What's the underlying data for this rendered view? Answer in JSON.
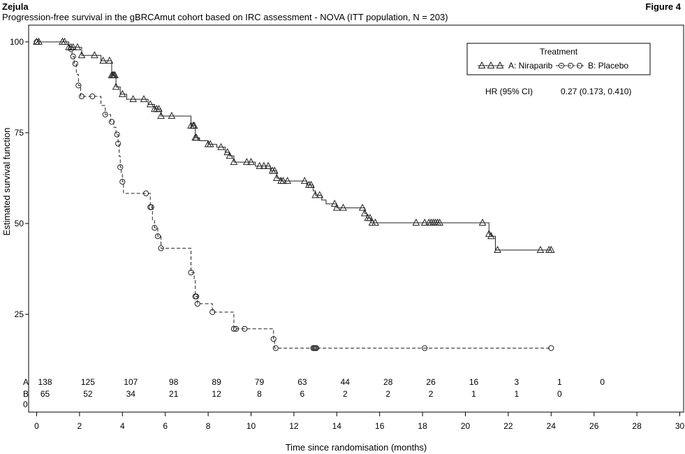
{
  "header": {
    "drug": "Zejula",
    "figure": "Figure 4",
    "subtitle": "Progression-free survival in the gBRCAmut cohort based on IRC assessment - NOVA (ITT population, N = 203)"
  },
  "chart_data": {
    "type": "line",
    "xlabel": "Time since randomisation (months)",
    "ylabel": "Estimated survival function",
    "xlim": [
      0,
      30
    ],
    "ylim": [
      0,
      100
    ],
    "xticks": [
      "0",
      "2",
      "4",
      "6",
      "8",
      "10",
      "12",
      "14",
      "16",
      "18",
      "20",
      "22",
      "24",
      "26",
      "28",
      "30"
    ],
    "yticks": [
      "25",
      "50",
      "75",
      "100"
    ],
    "legend": {
      "title": "Treatment",
      "entries": [
        "A: Niraparib",
        "B: Placebo"
      ],
      "placement": "top-right"
    },
    "annotation": {
      "label": "HR (95% CI)",
      "value": "0.27 (0.173, 0.410)"
    },
    "series": [
      {
        "name": "A: Niraparib",
        "style": "solid",
        "marker": "triangle",
        "steps": [
          [
            0,
            100
          ],
          [
            1.5,
            98.5
          ],
          [
            2.1,
            96.3
          ],
          [
            3,
            94.8
          ],
          [
            3.5,
            90.8
          ],
          [
            3.7,
            87.6
          ],
          [
            3.9,
            85.6
          ],
          [
            4.2,
            84.2
          ],
          [
            5.2,
            82.8
          ],
          [
            5.5,
            81.5
          ],
          [
            5.8,
            79.6
          ],
          [
            7.2,
            76.9
          ],
          [
            7.4,
            73.6
          ],
          [
            7.6,
            72.8
          ],
          [
            8.0,
            71.8
          ],
          [
            8.4,
            71.0
          ],
          [
            8.8,
            69.6
          ],
          [
            9.0,
            68.6
          ],
          [
            9.2,
            66.9
          ],
          [
            10.2,
            65.8
          ],
          [
            10.9,
            64.5
          ],
          [
            11.2,
            62.5
          ],
          [
            11.4,
            61.7
          ],
          [
            12.6,
            60.6
          ],
          [
            12.9,
            59.0
          ],
          [
            13.0,
            57.8
          ],
          [
            13.3,
            56.5
          ],
          [
            13.5,
            55.4
          ],
          [
            14.0,
            54.3
          ],
          [
            15.3,
            52.8
          ],
          [
            15.4,
            51.5
          ],
          [
            15.6,
            50.2
          ],
          [
            21.1,
            47.1
          ],
          [
            21.2,
            46.5
          ],
          [
            21.4,
            42.7
          ],
          [
            24,
            42.7
          ]
        ],
        "censor": [
          0,
          0.1,
          1.2,
          1.3,
          1.5,
          1.6,
          1.7,
          1.9,
          2.1,
          2.7,
          3.1,
          3.4,
          3.5,
          3.55,
          3.6,
          3.65,
          3.7,
          4.0,
          4.5,
          5.0,
          5.3,
          5.5,
          5.6,
          5.7,
          5.8,
          6.3,
          7.2,
          7.3,
          7.35,
          7.4,
          7.45,
          8.0,
          8.1,
          8.6,
          8.9,
          9.0,
          9.2,
          9.8,
          10.0,
          10.4,
          10.6,
          10.8,
          11.0,
          11.1,
          11.2,
          11.4,
          11.5,
          11.7,
          12.5,
          12.7,
          12.8,
          13.0,
          13.2,
          13.9,
          14.0,
          14.3,
          15.2,
          15.3,
          15.45,
          15.55,
          15.65,
          15.8,
          17.7,
          18.1,
          18.3,
          18.4,
          18.5,
          18.6,
          18.7,
          18.8,
          20.8,
          21.1,
          21.2,
          21.5,
          23.5,
          23.9,
          24.0
        ]
      },
      {
        "name": "B: Placebo",
        "style": "dashed",
        "marker": "circle",
        "steps": [
          [
            0,
            100
          ],
          [
            1.5,
            98.0
          ],
          [
            1.65,
            96.0
          ],
          [
            1.75,
            94.0
          ],
          [
            1.85,
            91.0
          ],
          [
            1.95,
            88.0
          ],
          [
            2.05,
            85.0
          ],
          [
            3.0,
            82.5
          ],
          [
            3.2,
            80.0
          ],
          [
            3.45,
            78.0
          ],
          [
            3.6,
            76.5
          ],
          [
            3.7,
            74.5
          ],
          [
            3.8,
            72.0
          ],
          [
            3.85,
            68.5
          ],
          [
            3.9,
            65.5
          ],
          [
            3.95,
            63.5
          ],
          [
            4.0,
            61.5
          ],
          [
            4.05,
            58.3
          ],
          [
            5.3,
            54.5
          ],
          [
            5.4,
            50.8
          ],
          [
            5.5,
            48.8
          ],
          [
            5.65,
            46.5
          ],
          [
            5.8,
            43.2
          ],
          [
            7.2,
            36.5
          ],
          [
            7.35,
            34.5
          ],
          [
            7.4,
            29.9
          ],
          [
            7.5,
            27.9
          ],
          [
            8.2,
            25.6
          ],
          [
            9.2,
            21.0
          ],
          [
            11.05,
            18.2
          ],
          [
            11.1,
            15.7
          ],
          [
            24,
            15.7
          ]
        ],
        "censor": [
          0,
          1.6,
          1.7,
          1.8,
          1.95,
          2.1,
          2.6,
          3.2,
          3.5,
          3.75,
          3.8,
          3.9,
          4.0,
          5.1,
          5.3,
          5.35,
          5.5,
          5.65,
          5.8,
          7.2,
          7.4,
          7.45,
          7.5,
          8.2,
          9.2,
          9.3,
          9.7,
          11.05,
          11.15,
          12.9,
          12.95,
          13.0,
          13.05,
          18.1,
          24.0
        ]
      }
    ],
    "risk_table": {
      "rows": [
        {
          "label": "A",
          "counts": [
            "138",
            "125",
            "107",
            "98",
            "89",
            "79",
            "63",
            "44",
            "28",
            "26",
            "16",
            "3",
            "1",
            "0"
          ]
        },
        {
          "label": "B",
          "counts": [
            "65",
            "52",
            "34",
            "21",
            "12",
            "8",
            "6",
            "2",
            "2",
            "2",
            "1",
            "1",
            "0"
          ]
        },
        {
          "label": "0",
          "counts": []
        }
      ]
    },
    "colors": {
      "line": "#222222",
      "frame": "#000000"
    }
  }
}
